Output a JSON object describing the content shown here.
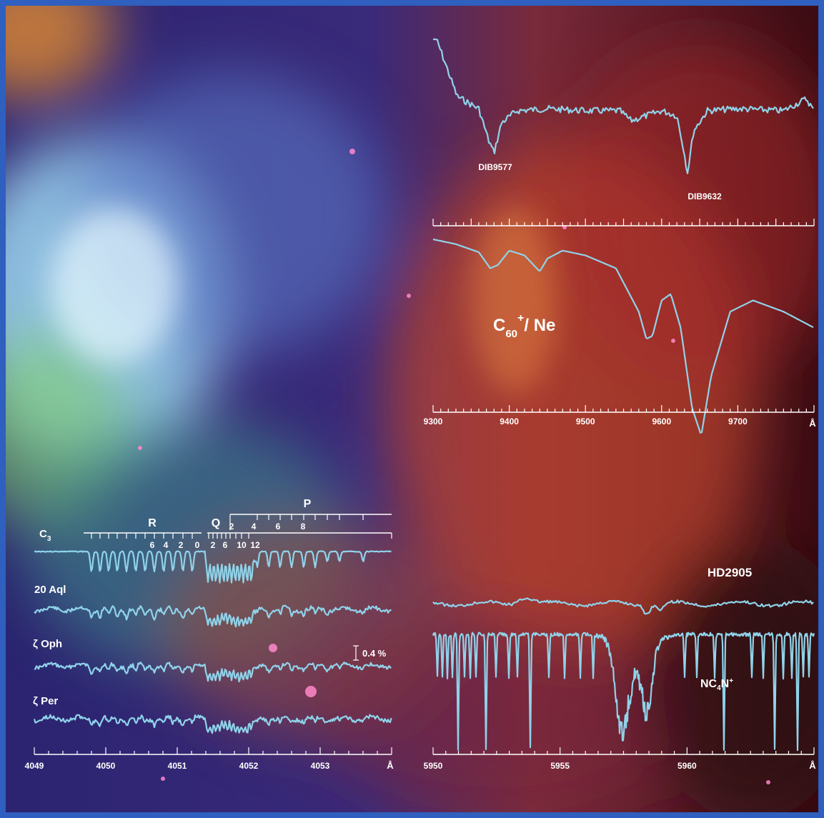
{
  "colors": {
    "trace": "#8fd3ea",
    "text": "#ffffff",
    "frame": "#2f5fbf"
  },
  "chart_data": [
    {
      "type": "line",
      "panel": "diffuse-bands-9500",
      "annotations": [
        "DIB9577",
        "DIB9632"
      ],
      "xlim": [
        9300,
        9800
      ],
      "series": [
        {
          "x": [
            9300,
            9330,
            9360,
            9373,
            9380,
            9390,
            9410,
            9450,
            9500,
            9545,
            9560,
            9600,
            9620,
            9628,
            9634,
            9642,
            9660,
            9700,
            9760,
            9790,
            9800
          ],
          "y": [
            0.35,
            0.15,
            0.02,
            -0.3,
            -0.42,
            -0.12,
            0.0,
            0.02,
            0.0,
            0.0,
            -0.1,
            0.0,
            -0.05,
            -0.35,
            -0.62,
            -0.2,
            0.0,
            0.02,
            0.0,
            0.12,
            0.0
          ]
        }
      ]
    },
    {
      "type": "line",
      "panel": "c60-neon-matrix",
      "annotations": [
        "C",
        "60",
        "+",
        "/ Ne"
      ],
      "xlim": [
        9300,
        9800
      ],
      "xticks": [
        9300,
        9400,
        9500,
        9600,
        9700
      ],
      "xunit": "Å",
      "series": [
        {
          "x": [
            9300,
            9330,
            9360,
            9375,
            9385,
            9400,
            9420,
            9440,
            9450,
            9470,
            9500,
            9540,
            9570,
            9580,
            9588,
            9600,
            9612,
            9625,
            9640,
            9652,
            9665,
            9690,
            9720,
            9760,
            9800
          ],
          "y": [
            1.0,
            0.97,
            0.92,
            0.82,
            0.84,
            0.93,
            0.9,
            0.8,
            0.88,
            0.93,
            0.9,
            0.82,
            0.55,
            0.38,
            0.4,
            0.62,
            0.66,
            0.45,
            -0.05,
            -0.22,
            0.15,
            0.55,
            0.62,
            0.55,
            0.45
          ]
        }
      ]
    },
    {
      "type": "line",
      "panel": "c3-band-4052",
      "xlim": [
        4049,
        4054
      ],
      "xticks": [
        4049,
        4050,
        4051,
        4052,
        4053
      ],
      "xunit": "Å",
      "branch_labels": {
        "R": "R",
        "Q": "Q",
        "P": "P"
      },
      "r_numbers": [
        "6",
        "4",
        "2",
        "0"
      ],
      "q_numbers": [
        "2",
        "6",
        "10",
        "12"
      ],
      "p_numbers": [
        "2",
        "4",
        "6",
        "8"
      ],
      "scale_bar": "0.4 %",
      "series": [
        {
          "name": "C3"
        },
        {
          "name": "20 Aql"
        },
        {
          "name": "ζ Oph"
        },
        {
          "name": "ζ Per"
        }
      ]
    },
    {
      "type": "line",
      "panel": "nc4n-5957",
      "xlim": [
        5950,
        5965
      ],
      "xticks": [
        5950,
        5955,
        5960
      ],
      "xunit": "Å",
      "series": [
        {
          "name": "HD2905"
        },
        {
          "name": "NC4N+"
        }
      ]
    }
  ],
  "labels": {
    "c3_prefix": "C",
    "c3_sub": "3",
    "nc4n_a": "NC",
    "nc4n_sub": "4",
    "nc4n_b": "N",
    "nc4n_sup": "+"
  }
}
